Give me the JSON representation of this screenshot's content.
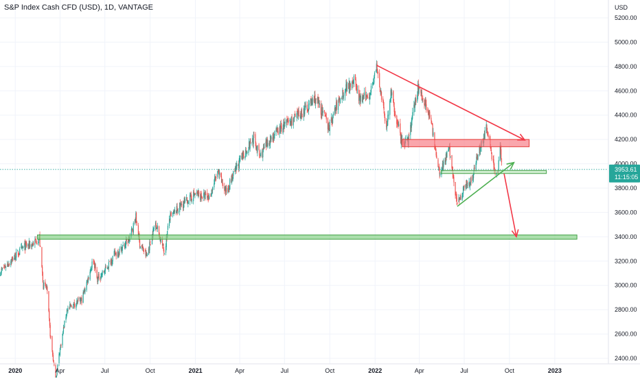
{
  "header": {
    "title": "S&P Index Cash CFD (USD), 1D, VANTAGE"
  },
  "price_axis": {
    "unit": "USD",
    "current_price": "3953.61",
    "countdown": "11:15:05"
  },
  "colors": {
    "up": "#26a69a",
    "down": "#ef5350",
    "grid": "#f0f3fa",
    "axis_text": "#131722",
    "price_label": "#26a69a",
    "green_zone": "#7fd07f",
    "red_zone": "#f7777f",
    "resistance_line": "#f23645",
    "support_line": "#4caf50"
  },
  "chart_data": {
    "type": "candlestick",
    "title": "S&P Index Cash CFD (USD), 1D, VANTAGE",
    "ylabel": "USD",
    "ylim": [
      2350,
      5350
    ],
    "xlim": [
      "2019-12-01",
      "2023-04-20"
    ],
    "grid": true,
    "y_ticks": [
      2400,
      2600,
      2800,
      3000,
      3200,
      3400,
      3600,
      3800,
      4000,
      4200,
      4400,
      4600,
      4800,
      5000,
      5200
    ],
    "x_ticks": [
      {
        "date": "2020-01-01",
        "label": "2020",
        "bold": true
      },
      {
        "date": "2020-04-01",
        "label": "Apr"
      },
      {
        "date": "2020-07-01",
        "label": "Jul"
      },
      {
        "date": "2020-10-01",
        "label": "Oct"
      },
      {
        "date": "2021-01-01",
        "label": "2021",
        "bold": true
      },
      {
        "date": "2021-04-01",
        "label": "Apr"
      },
      {
        "date": "2021-07-01",
        "label": "Jul"
      },
      {
        "date": "2021-10-01",
        "label": "Oct"
      },
      {
        "date": "2022-01-01",
        "label": "2022",
        "bold": true
      },
      {
        "date": "2022-04-01",
        "label": "Apr"
      },
      {
        "date": "2022-07-01",
        "label": "Jul"
      },
      {
        "date": "2022-10-01",
        "label": "Oct"
      },
      {
        "date": "2023-01-01",
        "label": "2023",
        "bold": true
      }
    ],
    "close_path": [
      [
        "2019-12-01",
        3110
      ],
      [
        "2019-12-15",
        3170
      ],
      [
        "2020-01-01",
        3240
      ],
      [
        "2020-01-20",
        3320
      ],
      [
        "2020-02-05",
        3340
      ],
      [
        "2020-02-19",
        3390
      ],
      [
        "2020-02-27",
        3000
      ],
      [
        "2020-03-05",
        2980
      ],
      [
        "2020-03-12",
        2600
      ],
      [
        "2020-03-23",
        2220
      ],
      [
        "2020-04-01",
        2480
      ],
      [
        "2020-04-15",
        2800
      ],
      [
        "2020-05-01",
        2850
      ],
      [
        "2020-05-15",
        2880
      ],
      [
        "2020-06-08",
        3220
      ],
      [
        "2020-06-15",
        3050
      ],
      [
        "2020-07-01",
        3120
      ],
      [
        "2020-07-20",
        3250
      ],
      [
        "2020-08-01",
        3290
      ],
      [
        "2020-08-20",
        3380
      ],
      [
        "2020-09-02",
        3560
      ],
      [
        "2020-09-10",
        3340
      ],
      [
        "2020-09-24",
        3240
      ],
      [
        "2020-10-12",
        3520
      ],
      [
        "2020-10-30",
        3270
      ],
      [
        "2020-11-09",
        3550
      ],
      [
        "2020-12-01",
        3650
      ],
      [
        "2020-12-31",
        3750
      ],
      [
        "2021-01-29",
        3720
      ],
      [
        "2021-02-15",
        3930
      ],
      [
        "2021-03-04",
        3770
      ],
      [
        "2021-04-01",
        4020
      ],
      [
        "2021-04-29",
        4210
      ],
      [
        "2021-05-12",
        4060
      ],
      [
        "2021-06-01",
        4200
      ],
      [
        "2021-07-01",
        4320
      ],
      [
        "2021-08-01",
        4400
      ],
      [
        "2021-09-02",
        4540
      ],
      [
        "2021-09-30",
        4300
      ],
      [
        "2021-10-15",
        4480
      ],
      [
        "2021-11-01",
        4620
      ],
      [
        "2021-11-19",
        4700
      ],
      [
        "2021-12-01",
        4520
      ],
      [
        "2021-12-20",
        4570
      ],
      [
        "2022-01-04",
        4790
      ],
      [
        "2022-01-24",
        4300
      ],
      [
        "2022-02-02",
        4580
      ],
      [
        "2022-02-24",
        4170
      ],
      [
        "2022-03-08",
        4170
      ],
      [
        "2022-03-29",
        4630
      ],
      [
        "2022-04-21",
        4420
      ],
      [
        "2022-05-12",
        3920
      ],
      [
        "2022-05-31",
        4130
      ],
      [
        "2022-06-17",
        3660
      ],
      [
        "2022-07-01",
        3820
      ],
      [
        "2022-07-15",
        3860
      ],
      [
        "2022-08-01",
        4120
      ],
      [
        "2022-08-16",
        4300
      ],
      [
        "2022-08-31",
        3960
      ],
      [
        "2022-09-07",
        3920
      ],
      [
        "2022-09-12",
        4120
      ],
      [
        "2022-09-16",
        3953.61
      ]
    ],
    "drawings": {
      "support_zone": {
        "from": "2020-02-15",
        "to": "2023-02-15",
        "y_low": 3380,
        "y_high": 3415
      },
      "resistance_zone": {
        "from": "2022-02-25",
        "to": "2022-11-10",
        "y_low": 4140,
        "y_high": 4200
      },
      "neckline_zone": {
        "from": "2022-05-15",
        "to": "2022-12-15",
        "y_low": 3920,
        "y_high": 3945
      },
      "descending_trendline": [
        [
          "2022-01-04",
          4810
        ],
        [
          "2022-11-01",
          4195
        ]
      ],
      "rising_trendline": [
        [
          "2022-06-17",
          3650
        ],
        [
          "2022-10-10",
          4010
        ]
      ],
      "projection_arrow": [
        [
          "2022-09-20",
          3920
        ],
        [
          "2022-10-15",
          3400
        ]
      ]
    }
  }
}
